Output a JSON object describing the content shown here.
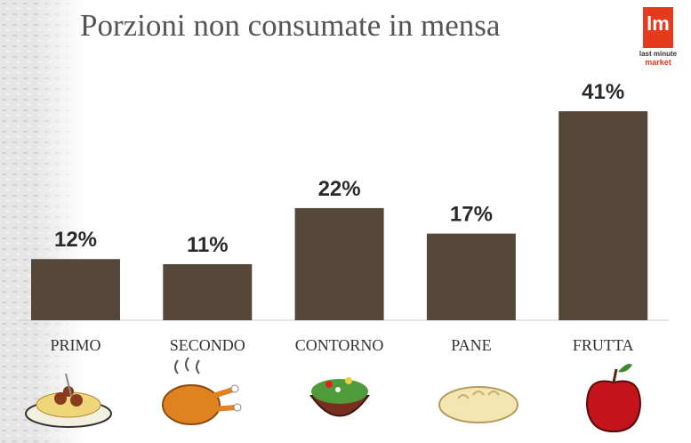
{
  "chart_data": {
    "type": "bar",
    "title": "Porzioni non consumate in mensa",
    "categories": [
      "PRIMO",
      "SECONDO",
      "CONTORNO",
      "PANE",
      "FRUTTA"
    ],
    "values": [
      12,
      11,
      22,
      17,
      41
    ],
    "value_labels": [
      "12%",
      "11%",
      "22%",
      "17%",
      "41%"
    ],
    "color": "#55483a"
  },
  "logo": {
    "mark": "lm",
    "line1": "last minute",
    "line2": "market"
  }
}
